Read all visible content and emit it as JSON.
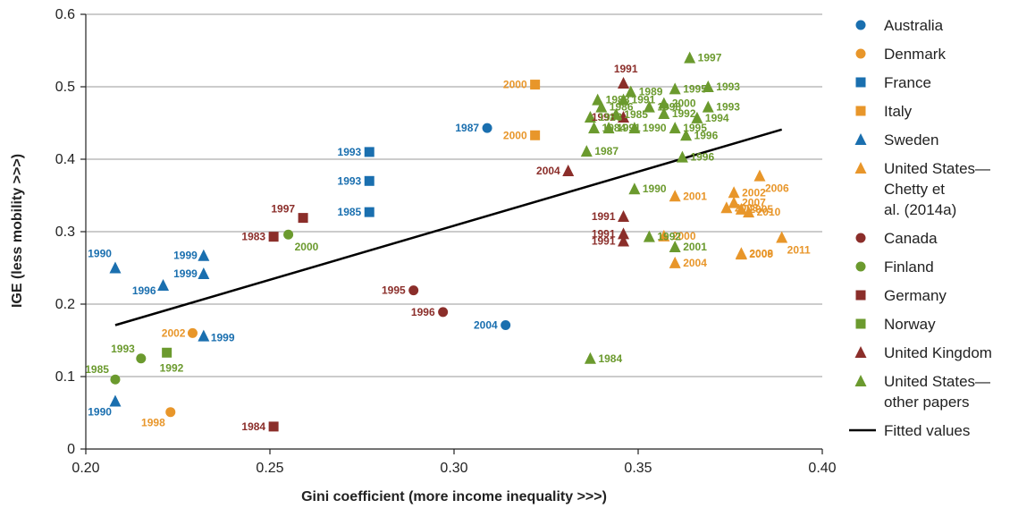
{
  "chart_data": {
    "type": "scatter",
    "title": "",
    "xlabel": "Gini coefficient (more income inequality >>>)",
    "ylabel": "IGE (less mobility >>>)",
    "xlim": [
      0.2,
      0.4
    ],
    "ylim": [
      0,
      0.6
    ],
    "xticks": [
      "0.20",
      "0.25",
      "0.30",
      "0.35",
      "0.40"
    ],
    "yticks": [
      "0",
      "0.1",
      "0.2",
      "0.3",
      "0.4",
      "0.5",
      "0.6"
    ],
    "grid": "horizontal",
    "legend_position": "right",
    "series": [
      {
        "name": "Australia",
        "marker": "circle",
        "color": "#1a6faf",
        "points": [
          {
            "x": 0.309,
            "y": 0.443,
            "label": "1987"
          },
          {
            "x": 0.314,
            "y": 0.171,
            "label": "2004"
          }
        ]
      },
      {
        "name": "Denmark",
        "marker": "circle",
        "color": "#e8962a",
        "points": [
          {
            "x": 0.229,
            "y": 0.16,
            "label": "2002"
          },
          {
            "x": 0.223,
            "y": 0.051,
            "label": "1998"
          }
        ]
      },
      {
        "name": "France",
        "marker": "square",
        "color": "#1a6faf",
        "points": [
          {
            "x": 0.277,
            "y": 0.41,
            "label": "1993"
          },
          {
            "x": 0.277,
            "y": 0.37,
            "label": "1993"
          },
          {
            "x": 0.277,
            "y": 0.327,
            "label": "1985"
          }
        ]
      },
      {
        "name": "Italy",
        "marker": "square",
        "color": "#e8962a",
        "points": [
          {
            "x": 0.322,
            "y": 0.503,
            "label": "2000"
          },
          {
            "x": 0.322,
            "y": 0.433,
            "label": "2000"
          }
        ]
      },
      {
        "name": "Sweden",
        "marker": "triangle",
        "color": "#1a6faf",
        "points": [
          {
            "x": 0.208,
            "y": 0.25,
            "label": "1990"
          },
          {
            "x": 0.221,
            "y": 0.226,
            "label": "1996"
          },
          {
            "x": 0.232,
            "y": 0.267,
            "label": "1999"
          },
          {
            "x": 0.232,
            "y": 0.242,
            "label": "1999"
          },
          {
            "x": 0.232,
            "y": 0.156,
            "label": "1999"
          },
          {
            "x": 0.208,
            "y": 0.066,
            "label": "1990"
          }
        ]
      },
      {
        "name": "United States—Chetty et al. (2014a)",
        "marker": "triangle",
        "color": "#e8962a",
        "points": [
          {
            "x": 0.383,
            "y": 0.377,
            "label": "2006"
          },
          {
            "x": 0.376,
            "y": 0.354,
            "label": "2002"
          },
          {
            "x": 0.36,
            "y": 0.349,
            "label": "2001"
          },
          {
            "x": 0.376,
            "y": 0.34,
            "label": "2007"
          },
          {
            "x": 0.374,
            "y": 0.333,
            "label": "2003"
          },
          {
            "x": 0.378,
            "y": 0.331,
            "label": "2005"
          },
          {
            "x": 0.38,
            "y": 0.327,
            "label": "2010"
          },
          {
            "x": 0.357,
            "y": 0.294,
            "label": "2000"
          },
          {
            "x": 0.389,
            "y": 0.292,
            "label": "2011"
          },
          {
            "x": 0.378,
            "y": 0.27,
            "label": "2008"
          },
          {
            "x": 0.378,
            "y": 0.269,
            "label": "2009"
          },
          {
            "x": 0.36,
            "y": 0.257,
            "label": "2004"
          }
        ]
      },
      {
        "name": "Canada",
        "marker": "circle",
        "color": "#8b2e2a",
        "points": [
          {
            "x": 0.289,
            "y": 0.219,
            "label": "1995"
          },
          {
            "x": 0.297,
            "y": 0.189,
            "label": "1996"
          }
        ]
      },
      {
        "name": "Finland",
        "marker": "circle",
        "color": "#6b9a2e",
        "points": [
          {
            "x": 0.255,
            "y": 0.296,
            "label": "2000"
          },
          {
            "x": 0.215,
            "y": 0.125,
            "label": "1993"
          },
          {
            "x": 0.208,
            "y": 0.096,
            "label": "1985"
          }
        ]
      },
      {
        "name": "Germany",
        "marker": "square",
        "color": "#8b2e2a",
        "points": [
          {
            "x": 0.259,
            "y": 0.319,
            "label": "1997"
          },
          {
            "x": 0.251,
            "y": 0.293,
            "label": "1983"
          },
          {
            "x": 0.251,
            "y": 0.031,
            "label": "1984"
          }
        ]
      },
      {
        "name": "Norway",
        "marker": "square",
        "color": "#6b9a2e",
        "points": [
          {
            "x": 0.222,
            "y": 0.133,
            "label": "1992"
          }
        ]
      },
      {
        "name": "United Kingdom",
        "marker": "triangle",
        "color": "#8b2e2a",
        "points": [
          {
            "x": 0.346,
            "y": 0.505,
            "label": "1991"
          },
          {
            "x": 0.346,
            "y": 0.458,
            "label": "1991"
          },
          {
            "x": 0.331,
            "y": 0.384,
            "label": "2004"
          },
          {
            "x": 0.346,
            "y": 0.321,
            "label": "1991"
          },
          {
            "x": 0.346,
            "y": 0.297,
            "label": "1991"
          },
          {
            "x": 0.346,
            "y": 0.287,
            "label": "1991"
          }
        ]
      },
      {
        "name": "United States—other papers",
        "marker": "triangle",
        "color": "#6b9a2e",
        "points": [
          {
            "x": 0.364,
            "y": 0.54,
            "label": "1997"
          },
          {
            "x": 0.36,
            "y": 0.497,
            "label": "1995"
          },
          {
            "x": 0.369,
            "y": 0.5,
            "label": "1993"
          },
          {
            "x": 0.348,
            "y": 0.493,
            "label": "1989"
          },
          {
            "x": 0.346,
            "y": 0.482,
            "label": "1991"
          },
          {
            "x": 0.339,
            "y": 0.482,
            "label": "1988"
          },
          {
            "x": 0.34,
            "y": 0.472,
            "label": "1986"
          },
          {
            "x": 0.357,
            "y": 0.477,
            "label": "2000"
          },
          {
            "x": 0.344,
            "y": 0.462,
            "label": "1985"
          },
          {
            "x": 0.337,
            "y": 0.458,
            "label": "1983"
          },
          {
            "x": 0.357,
            "y": 0.463,
            "label": "1992"
          },
          {
            "x": 0.353,
            "y": 0.472,
            "label": "1998"
          },
          {
            "x": 0.369,
            "y": 0.472,
            "label": "1993"
          },
          {
            "x": 0.366,
            "y": 0.457,
            "label": "1994"
          },
          {
            "x": 0.338,
            "y": 0.443,
            "label": "1984"
          },
          {
            "x": 0.342,
            "y": 0.443,
            "label": "1991"
          },
          {
            "x": 0.36,
            "y": 0.443,
            "label": "1995"
          },
          {
            "x": 0.349,
            "y": 0.443,
            "label": "1990"
          },
          {
            "x": 0.363,
            "y": 0.433,
            "label": "1996"
          },
          {
            "x": 0.336,
            "y": 0.411,
            "label": "1987"
          },
          {
            "x": 0.362,
            "y": 0.403,
            "label": "1996"
          },
          {
            "x": 0.349,
            "y": 0.359,
            "label": "1990"
          },
          {
            "x": 0.353,
            "y": 0.293,
            "label": "1992"
          },
          {
            "x": 0.36,
            "y": 0.279,
            "label": "2001"
          },
          {
            "x": 0.337,
            "y": 0.125,
            "label": "1984"
          }
        ]
      }
    ],
    "fitted_line": {
      "name": "Fitted values",
      "x": [
        0.208,
        0.389
      ],
      "y": [
        0.171,
        0.441
      ],
      "color": "#000000"
    }
  }
}
